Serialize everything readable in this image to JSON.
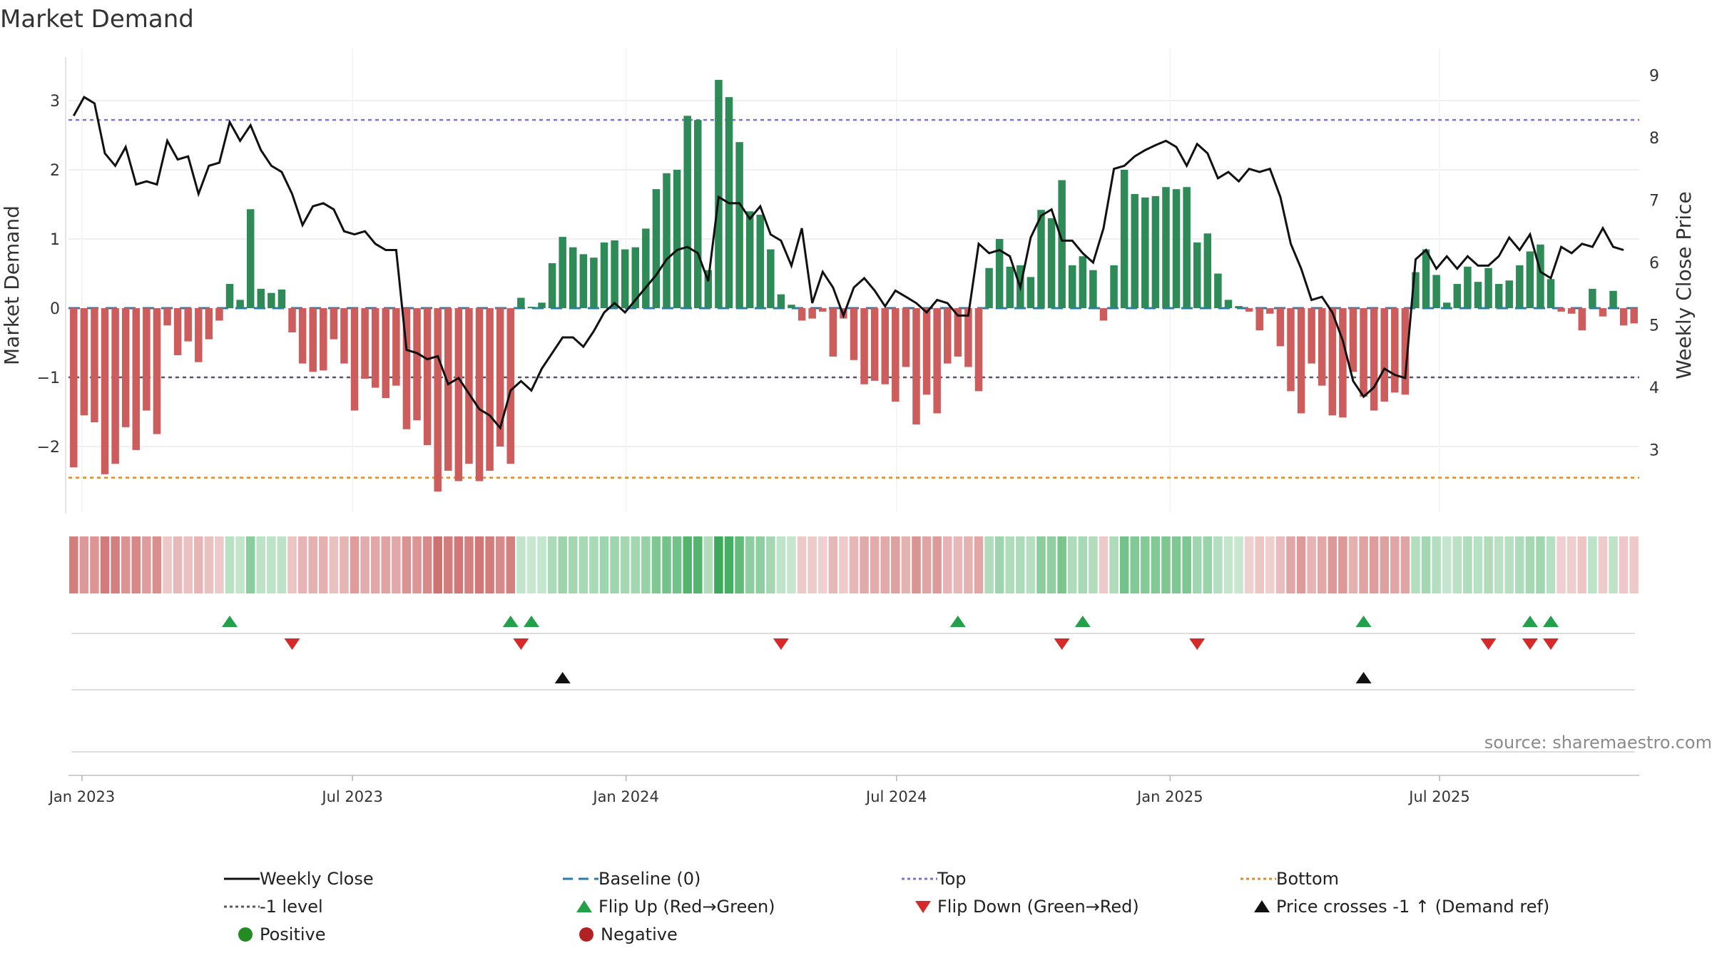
{
  "chart_data": {
    "type": "bar",
    "title": "Market Demand",
    "ylabel": "Market Demand",
    "y2label": "Weekly Close Price",
    "ylim": [
      -3.0,
      3.5
    ],
    "y2lim": [
      2.0,
      9.2
    ],
    "yticks": [
      {
        "value": 3,
        "label": "3"
      },
      {
        "value": 2,
        "label": "2"
      },
      {
        "value": 1,
        "label": "1"
      },
      {
        "value": 0,
        "label": "0"
      },
      {
        "value": -1,
        "label": "−1"
      },
      {
        "value": -2,
        "label": "−2"
      }
    ],
    "y2ticks": [
      {
        "value": 9,
        "label": "9"
      },
      {
        "value": 8,
        "label": "8"
      },
      {
        "value": 7,
        "label": "7"
      },
      {
        "value": 6,
        "label": "6"
      },
      {
        "value": 5,
        "label": "5"
      },
      {
        "value": 4,
        "label": "4"
      },
      {
        "value": 3,
        "label": "3"
      }
    ],
    "xticks": [
      {
        "week": 0.8,
        "label": "Jan 2023"
      },
      {
        "week": 26.8,
        "label": "Jul 2023"
      },
      {
        "week": 53.1,
        "label": "Jan 2024"
      },
      {
        "week": 79.1,
        "label": "Jul 2024"
      },
      {
        "week": 105.4,
        "label": "Jan 2025"
      },
      {
        "week": 131.3,
        "label": "Jul 2025"
      }
    ],
    "reference_lines": {
      "top": 2.72,
      "minus_one": -1.0,
      "bottom": -2.45,
      "baseline": 0
    },
    "demand": [
      -2.3,
      -1.55,
      -1.65,
      -2.4,
      -2.25,
      -1.72,
      -2.05,
      -1.48,
      -1.82,
      -0.25,
      -0.68,
      -0.48,
      -0.78,
      -0.45,
      -0.18,
      0.35,
      0.12,
      1.43,
      0.28,
      0.22,
      0.27,
      -0.35,
      -0.8,
      -0.92,
      -0.9,
      -0.45,
      -0.8,
      -1.48,
      -1.02,
      -1.15,
      -1.3,
      -1.12,
      -1.75,
      -1.62,
      -1.98,
      -2.65,
      -2.35,
      -2.5,
      -2.25,
      -2.5,
      -2.35,
      -2.0,
      -2.25,
      0.15,
      0.02,
      0.08,
      0.65,
      1.03,
      0.88,
      0.78,
      0.73,
      0.95,
      0.98,
      0.85,
      0.88,
      1.15,
      1.72,
      1.95,
      2.0,
      2.78,
      2.72,
      0.55,
      3.3,
      3.05,
      2.4,
      1.4,
      1.35,
      0.85,
      0.2,
      0.05,
      -0.18,
      -0.15,
      -0.05,
      -0.7,
      -0.15,
      -0.75,
      -1.1,
      -1.05,
      -1.1,
      -1.35,
      -0.85,
      -1.68,
      -1.25,
      -1.52,
      -0.8,
      -0.7,
      -0.85,
      -1.2,
      0.58,
      1.0,
      0.6,
      0.62,
      0.45,
      1.42,
      1.3,
      1.85,
      0.62,
      0.75,
      0.55,
      -0.18,
      0.62,
      2.0,
      1.65,
      1.6,
      1.62,
      1.75,
      1.72,
      1.75,
      0.95,
      1.08,
      0.5,
      0.12,
      0.03,
      -0.05,
      -0.32,
      -0.08,
      -0.55,
      -1.2,
      -1.52,
      -0.8,
      -1.12,
      -1.55,
      -1.58,
      -0.92,
      -1.28,
      -1.48,
      -1.35,
      -1.22,
      -1.25,
      0.52,
      0.85,
      0.48,
      0.08,
      0.35,
      0.6,
      0.38,
      0.58,
      0.35,
      0.4,
      0.62,
      0.82,
      0.92,
      0.42,
      -0.05,
      -0.08,
      -0.32,
      0.28,
      -0.12,
      0.25,
      -0.25,
      -0.22
    ],
    "price": [
      8.35,
      8.65,
      8.55,
      7.75,
      7.55,
      7.85,
      7.25,
      7.3,
      7.25,
      7.95,
      7.65,
      7.7,
      7.1,
      7.55,
      7.6,
      8.25,
      7.95,
      8.2,
      7.8,
      7.55,
      7.45,
      7.1,
      6.6,
      6.9,
      6.95,
      6.85,
      6.5,
      6.45,
      6.5,
      6.3,
      6.2,
      6.2,
      4.6,
      4.55,
      4.45,
      4.5,
      4.05,
      4.15,
      3.9,
      3.65,
      3.55,
      3.35,
      3.95,
      4.1,
      3.95,
      4.3,
      4.55,
      4.8,
      4.8,
      4.65,
      4.9,
      5.2,
      5.35,
      5.2,
      5.4,
      5.6,
      5.8,
      6.05,
      6.2,
      6.25,
      6.15,
      5.7,
      7.05,
      6.95,
      6.95,
      6.7,
      6.9,
      6.45,
      6.35,
      5.95,
      6.55,
      5.35,
      5.85,
      5.6,
      5.15,
      5.6,
      5.75,
      5.55,
      5.3,
      5.55,
      5.45,
      5.35,
      5.2,
      5.4,
      5.35,
      5.15,
      5.15,
      6.3,
      6.15,
      6.2,
      6.1,
      5.6,
      6.4,
      6.75,
      6.85,
      6.35,
      6.35,
      6.15,
      6.0,
      6.55,
      7.5,
      7.55,
      7.7,
      7.8,
      7.88,
      7.95,
      7.85,
      7.55,
      7.9,
      7.75,
      7.35,
      7.45,
      7.3,
      7.5,
      7.45,
      7.5,
      7.05,
      6.3,
      5.9,
      5.4,
      5.45,
      5.2,
      4.75,
      4.1,
      3.85,
      4.0,
      4.3,
      4.2,
      4.15,
      6.05,
      6.2,
      5.9,
      6.1,
      5.9,
      6.1,
      5.95,
      5.95,
      6.1,
      6.4,
      6.2,
      6.45,
      5.85,
      5.75,
      6.25,
      6.15,
      6.3,
      6.25,
      6.55,
      6.25,
      6.2
    ],
    "flip_up_weeks": [
      15,
      42,
      44,
      85,
      97,
      124,
      140,
      142
    ],
    "flip_down_weeks": [
      21,
      43,
      68,
      95,
      108,
      136,
      140,
      142
    ],
    "price_cross_weeks": [
      47,
      124
    ],
    "source_text": "source: sharemaestro.com"
  },
  "legend": {
    "weekly_close": "Weekly Close",
    "baseline": "Baseline (0)",
    "top": "Top",
    "bottom": "Bottom",
    "minus_one": "-1 level",
    "flip_up": "Flip Up (Red→Green)",
    "flip_down": "Flip Down (Green→Red)",
    "price_cross": "Price crosses -1 ↑ (Demand ref)",
    "positive": "Positive",
    "negative": "Negative"
  },
  "colors": {
    "positive": "#2e8b57",
    "negative": "#cd5c5c",
    "line": "#111111",
    "baseline": "#2b7bb0",
    "top": "#7b72d6",
    "minus_one": "#555566",
    "bottom": "#e08a2e",
    "flip_up": "#22a04a",
    "flip_down": "#d62a2a",
    "price_cross": "#111111",
    "positive_dot": "#228b22",
    "negative_dot": "#b22222"
  }
}
